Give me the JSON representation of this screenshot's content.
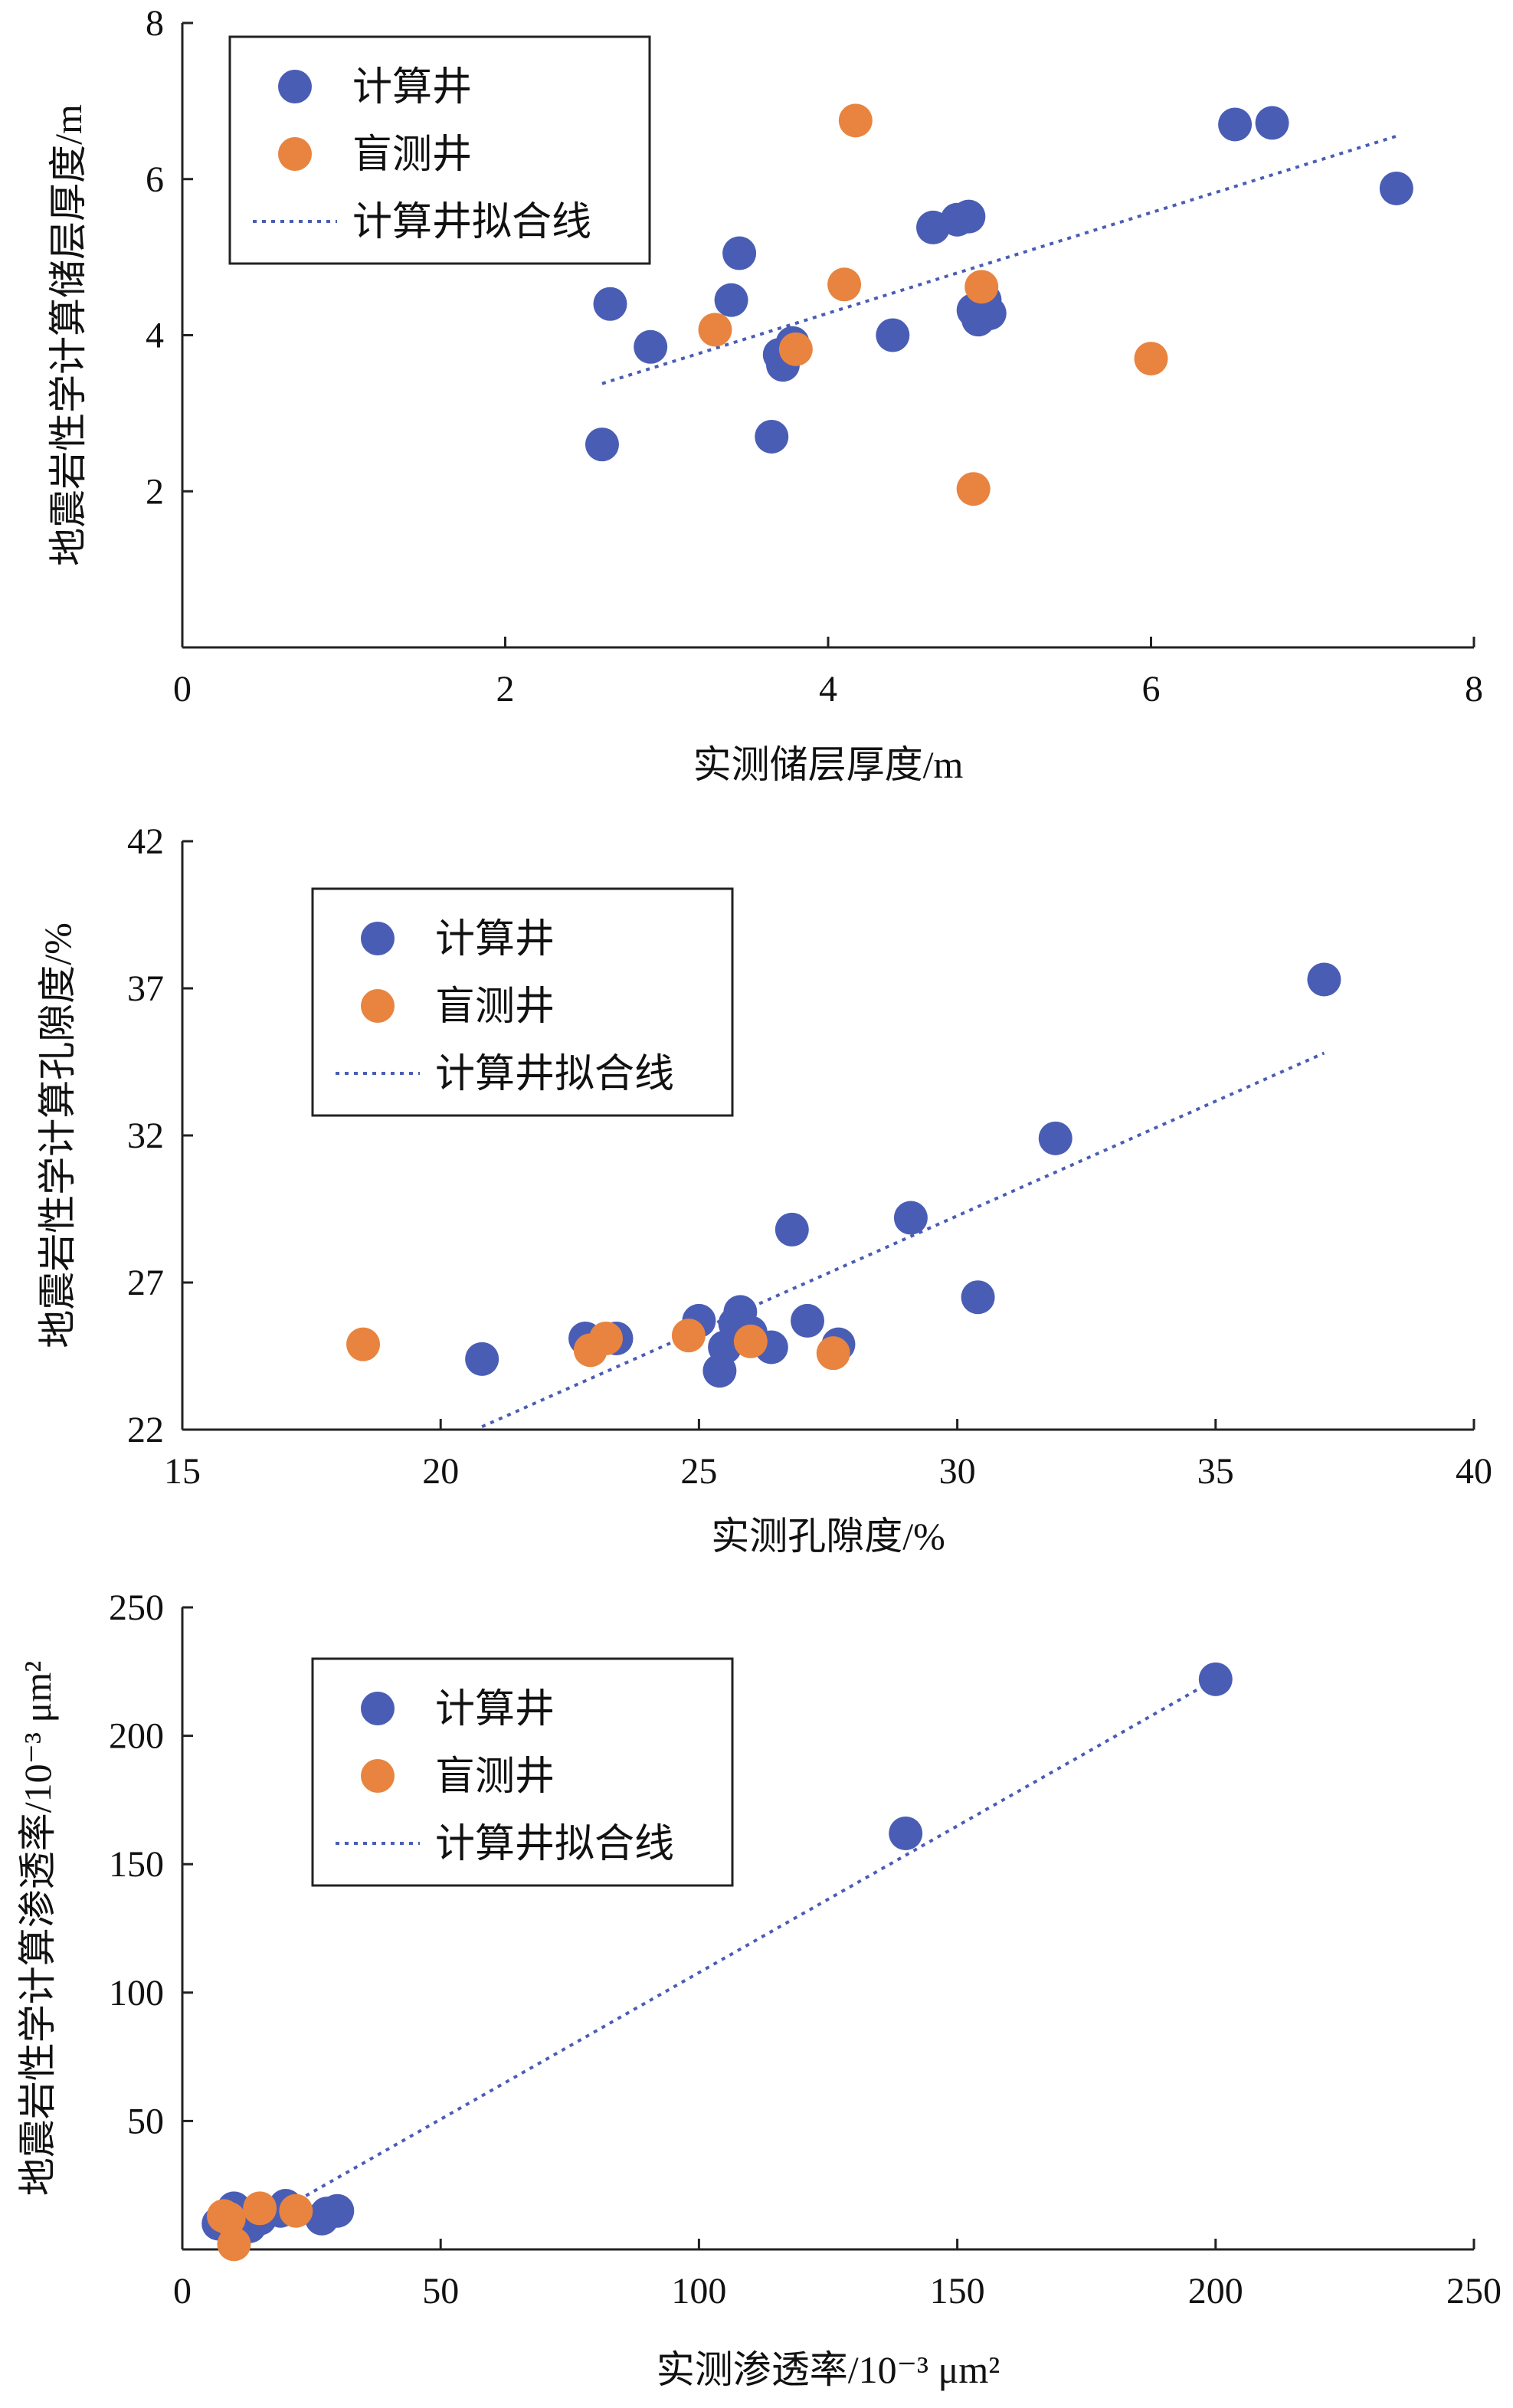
{
  "colors": {
    "calc": "#4a5db5",
    "blind": "#e8843f",
    "fit": "#4a5db5",
    "axis": "#222222"
  },
  "legend": {
    "calc": "计算井",
    "blind": "盲测井",
    "fit": "计算井拟合线"
  },
  "chart_data": [
    {
      "type": "scatter",
      "xlabel": "实测储层厚度/m",
      "ylabel": "地震岩性学计算储层厚度/m",
      "xlim": [
        0,
        8
      ],
      "ylim": [
        0,
        8
      ],
      "xticks": [
        "0",
        "2",
        "4",
        "6",
        "8"
      ],
      "yticks": [
        "2",
        "4",
        "6",
        "8"
      ],
      "legend_position": "top-left",
      "series": [
        {
          "name": "计算井",
          "points": [
            [
              2.6,
              2.6
            ],
            [
              2.65,
              4.4
            ],
            [
              2.9,
              3.85
            ],
            [
              3.4,
              4.45
            ],
            [
              3.45,
              5.05
            ],
            [
              3.65,
              2.7
            ],
            [
              3.7,
              3.75
            ],
            [
              3.72,
              3.62
            ],
            [
              3.78,
              3.9
            ],
            [
              4.4,
              4.0
            ],
            [
              4.65,
              5.38
            ],
            [
              4.8,
              5.48
            ],
            [
              4.87,
              5.52
            ],
            [
              4.9,
              4.32
            ],
            [
              4.93,
              4.2
            ],
            [
              4.97,
              4.45
            ],
            [
              5.0,
              4.28
            ],
            [
              6.52,
              6.7
            ],
            [
              6.75,
              6.72
            ],
            [
              7.52,
              5.88
            ]
          ]
        },
        {
          "name": "盲测井",
          "points": [
            [
              3.3,
              4.07
            ],
            [
              3.8,
              3.82
            ],
            [
              4.1,
              4.65
            ],
            [
              4.17,
              6.75
            ],
            [
              4.9,
              2.03
            ],
            [
              4.95,
              4.62
            ],
            [
              6.0,
              3.7
            ]
          ]
        }
      ],
      "fit_line": [
        [
          2.6,
          3.38
        ],
        [
          7.52,
          6.55
        ]
      ]
    },
    {
      "type": "scatter",
      "xlabel": "实测孔隙度/%",
      "ylabel": "地震岩性学计算孔隙度/%",
      "xlim": [
        15,
        40
      ],
      "ylim": [
        22,
        42
      ],
      "xticks": [
        "15",
        "20",
        "25",
        "30",
        "35",
        "40"
      ],
      "yticks": [
        "22",
        "27",
        "32",
        "37",
        "42"
      ],
      "legend_position": "top-left",
      "series": [
        {
          "name": "计算井",
          "points": [
            [
              20.8,
              24.4
            ],
            [
              22.8,
              25.1
            ],
            [
              23.4,
              25.1
            ],
            [
              25.0,
              25.7
            ],
            [
              25.4,
              24.0
            ],
            [
              25.5,
              24.8
            ],
            [
              25.7,
              25.6
            ],
            [
              25.8,
              26.0
            ],
            [
              26.0,
              25.3
            ],
            [
              26.4,
              24.8
            ],
            [
              26.8,
              28.8
            ],
            [
              27.1,
              25.7
            ],
            [
              27.7,
              24.9
            ],
            [
              29.1,
              29.2
            ],
            [
              30.4,
              26.5
            ],
            [
              31.9,
              31.9
            ],
            [
              37.1,
              37.3
            ]
          ]
        },
        {
          "name": "盲测井",
          "points": [
            [
              18.5,
              24.9
            ],
            [
              22.9,
              24.7
            ],
            [
              23.2,
              25.1
            ],
            [
              24.8,
              25.2
            ],
            [
              26.0,
              25.0
            ],
            [
              27.6,
              24.6
            ]
          ]
        }
      ],
      "fit_line": [
        [
          20.8,
          22.1
        ],
        [
          37.1,
          34.8
        ]
      ]
    },
    {
      "type": "scatter",
      "xlabel": "实测渗透率/10⁻³ μm²",
      "ylabel": "地震岩性学计算渗透率/10⁻³ μm²",
      "xlim": [
        0,
        250
      ],
      "ylim": [
        0,
        250
      ],
      "xticks": [
        "0",
        "50",
        "100",
        "150",
        "200",
        "250"
      ],
      "yticks": [
        "50",
        "100",
        "150",
        "200",
        "250"
      ],
      "legend_position": "top-left",
      "series": [
        {
          "name": "计算井",
          "points": [
            [
              7,
              10
            ],
            [
              9,
              13
            ],
            [
              10,
              16
            ],
            [
              13,
              9
            ],
            [
              15,
              12
            ],
            [
              19,
              15
            ],
            [
              20,
              17
            ],
            [
              27,
              12
            ],
            [
              28,
              14
            ],
            [
              30,
              15
            ],
            [
              140,
              162
            ],
            [
              200,
              222
            ]
          ]
        },
        {
          "name": "盲测井",
          "points": [
            [
              8,
              13
            ],
            [
              9,
              12
            ],
            [
              10,
              2
            ],
            [
              15,
              16
            ],
            [
              22,
              15
            ]
          ]
        }
      ],
      "fit_line": [
        [
          10,
          5
        ],
        [
          200,
          222
        ]
      ]
    }
  ]
}
